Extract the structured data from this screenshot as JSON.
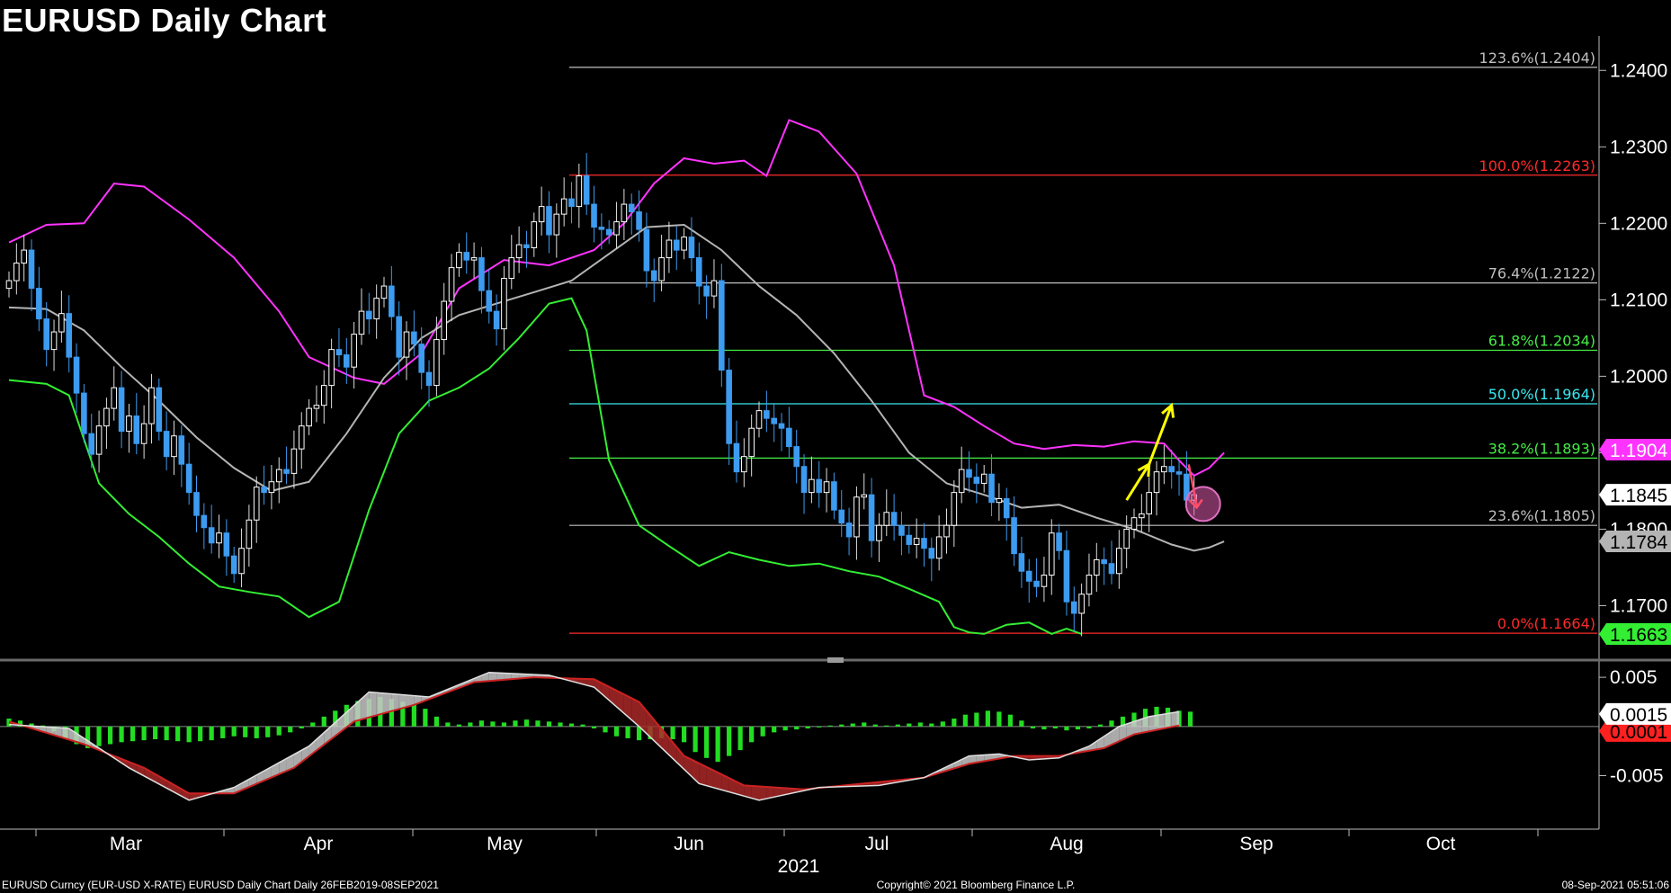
{
  "title": "EURUSD Daily Chart",
  "footer": {
    "left": "EURUSD Curncy (EUR-USD X-RATE) EURUSD Daily Chart  Daily 26FEB2019-08SEP2021",
    "center": "Copyright© 2021 Bloomberg Finance L.P.",
    "right": "08-Sep-2021 05:51:06"
  },
  "colors": {
    "background": "#000000",
    "upper_band": "#ff33ff",
    "lower_band": "#33ee33",
    "mid_band": "#b4b4b4",
    "candle_up": "#ffffff",
    "candle_down": "#3d9bf0",
    "fib_red": "#ff2a2a",
    "fib_green": "#44ee44",
    "fib_cyan": "#38e8f0",
    "fib_white": "#bfbfbf",
    "arrow": "#ffff00",
    "macd_hist": "#22dd22",
    "macd_line": "#bdbdbd",
    "signal_line": "#cc2222"
  },
  "chart_data": {
    "type": "candlestick",
    "title": "EURUSD Daily Chart",
    "year_label": "2021",
    "x_ticks": [
      "Mar",
      "Apr",
      "May",
      "Jun",
      "Jul",
      "Aug",
      "Sep",
      "Oct"
    ],
    "ylim": [
      1.163,
      1.2445
    ],
    "y_ticks": [
      "1.2400",
      "1.2300",
      "1.2200",
      "1.2100",
      "1.2000",
      "1.1900",
      "1.1800",
      "1.1700"
    ],
    "fibonacci_levels": [
      {
        "label": "123.6%(1.2404)",
        "value": 1.2404,
        "color": "white"
      },
      {
        "label": "100.0%(1.2263)",
        "value": 1.2263,
        "color": "red"
      },
      {
        "label": "76.4%(1.2122)",
        "value": 1.2122,
        "color": "white"
      },
      {
        "label": "61.8%(1.2034)",
        "value": 1.2034,
        "color": "green"
      },
      {
        "label": "50.0%(1.1964)",
        "value": 1.1964,
        "color": "cyan"
      },
      {
        "label": "38.2%(1.1893)",
        "value": 1.1893,
        "color": "green"
      },
      {
        "label": "23.6%(1.1805)",
        "value": 1.1805,
        "color": "white"
      },
      {
        "label": "0.0%(1.1664)",
        "value": 1.1664,
        "color": "red"
      }
    ],
    "price_badges": [
      {
        "label": "1.1904",
        "value": 1.1904,
        "bg": "#ff33ff",
        "fg": "#ffffff"
      },
      {
        "label": "1.1845",
        "value": 1.1845,
        "bg": "#ffffff",
        "fg": "#000000"
      },
      {
        "label": "1.1784",
        "value": 1.1784,
        "bg": "#b4b4b4",
        "fg": "#000000"
      },
      {
        "label": "1.1663",
        "value": 1.1663,
        "bg": "#33ee33",
        "fg": "#000000"
      }
    ],
    "closes": [
      1.2125,
      1.2148,
      1.2165,
      1.2115,
      1.2075,
      1.2035,
      1.2058,
      1.2082,
      1.2025,
      1.1978,
      1.1925,
      1.1898,
      1.1935,
      1.1958,
      1.1985,
      1.1928,
      1.1948,
      1.1912,
      1.1938,
      1.1985,
      1.1928,
      1.1895,
      1.1922,
      1.1885,
      1.1848,
      1.1818,
      1.1802,
      1.1782,
      1.1795,
      1.1765,
      1.1742,
      1.1775,
      1.1812,
      1.1855,
      1.1848,
      1.1862,
      1.1878,
      1.1873,
      1.1905,
      1.1935,
      1.1958,
      1.1962,
      1.1988,
      1.2035,
      1.2028,
      1.2012,
      1.2055,
      1.2085,
      1.2075,
      1.2102,
      1.2118,
      1.2078,
      1.2025,
      1.2058,
      1.2042,
      1.2005,
      1.1988,
      1.2048,
      1.2098,
      1.2142,
      1.2162,
      1.2152,
      1.2155,
      1.2112,
      1.2085,
      1.2062,
      1.2128,
      1.2155,
      1.2172,
      1.2168,
      1.2202,
      1.2222,
      1.2185,
      1.2212,
      1.2232,
      1.2222,
      1.2262,
      1.2225,
      1.2195,
      1.2192,
      1.2185,
      1.2202,
      1.2225,
      1.2215,
      1.2192,
      1.2138,
      1.2125,
      1.2155,
      1.2178,
      1.2165,
      1.2182,
      1.2155,
      1.2118,
      1.2105,
      1.2125,
      1.2008,
      1.1912,
      1.1875,
      1.1895,
      1.1932,
      1.1955,
      1.1945,
      1.1938,
      1.1932,
      1.1908,
      1.1882,
      1.1848,
      1.1865,
      1.1848,
      1.1862,
      1.1825,
      1.1808,
      1.179,
      1.1842,
      1.1845,
      1.1785,
      1.1805,
      1.1822,
      1.1805,
      1.1792,
      1.178,
      1.1788,
      1.1775,
      1.1762,
      1.179,
      1.1805,
      1.1848,
      1.1878,
      1.1868,
      1.186,
      1.1872,
      1.1835,
      1.184,
      1.1815,
      1.1768,
      1.1745,
      1.1732,
      1.1725,
      1.174,
      1.1795,
      1.1772,
      1.1705,
      1.169,
      1.1715,
      1.174,
      1.176,
      1.1755,
      1.1742,
      1.1775,
      1.18,
      1.1815,
      1.182,
      1.1848,
      1.1875,
      1.1882,
      1.1875,
      1.1872,
      1.1838,
      1.1845
    ],
    "bollinger_upper": [
      [
        0,
        1.2175
      ],
      [
        5,
        1.2198
      ],
      [
        10,
        1.22
      ],
      [
        14,
        1.2252
      ],
      [
        18,
        1.2248
      ],
      [
        24,
        1.2205
      ],
      [
        30,
        1.2155
      ],
      [
        36,
        1.2085
      ],
      [
        40,
        1.2025
      ],
      [
        46,
        1.1998
      ],
      [
        50,
        1.199
      ],
      [
        55,
        1.203
      ],
      [
        60,
        1.2115
      ],
      [
        66,
        1.2152
      ],
      [
        72,
        1.2145
      ],
      [
        78,
        1.2165
      ],
      [
        82,
        1.22
      ],
      [
        86,
        1.2252
      ],
      [
        90,
        1.2285
      ],
      [
        94,
        1.2278
      ],
      [
        98,
        1.2282
      ],
      [
        101,
        1.2262
      ],
      [
        104,
        1.2335
      ],
      [
        108,
        1.232
      ],
      [
        113,
        1.2265
      ],
      [
        118,
        1.2145
      ],
      [
        122,
        1.1975
      ],
      [
        126,
        1.196
      ],
      [
        130,
        1.1935
      ],
      [
        134,
        1.1912
      ],
      [
        138,
        1.1905
      ],
      [
        142,
        1.191
      ],
      [
        146,
        1.1908
      ],
      [
        150,
        1.1915
      ],
      [
        154,
        1.1912
      ],
      [
        156,
        1.189
      ],
      [
        158,
        1.187
      ],
      [
        160,
        1.188
      ],
      [
        162,
        1.19
      ]
    ],
    "bollinger_middle": [
      [
        0,
        1.209
      ],
      [
        5,
        1.2088
      ],
      [
        10,
        1.206
      ],
      [
        15,
        1.2012
      ],
      [
        20,
        1.1968
      ],
      [
        25,
        1.192
      ],
      [
        30,
        1.188
      ],
      [
        35,
        1.185
      ],
      [
        40,
        1.1862
      ],
      [
        45,
        1.1925
      ],
      [
        50,
        1.1998
      ],
      [
        55,
        1.205
      ],
      [
        60,
        1.208
      ],
      [
        65,
        1.2095
      ],
      [
        70,
        1.211
      ],
      [
        75,
        1.2125
      ],
      [
        80,
        1.216
      ],
      [
        85,
        1.2195
      ],
      [
        90,
        1.2198
      ],
      [
        95,
        1.2165
      ],
      [
        100,
        1.2118
      ],
      [
        105,
        1.208
      ],
      [
        110,
        1.203
      ],
      [
        115,
        1.1968
      ],
      [
        120,
        1.19
      ],
      [
        125,
        1.186
      ],
      [
        130,
        1.1845
      ],
      [
        135,
        1.1828
      ],
      [
        140,
        1.1832
      ],
      [
        145,
        1.1815
      ],
      [
        150,
        1.18
      ],
      [
        155,
        1.178
      ],
      [
        158,
        1.1772
      ],
      [
        160,
        1.1776
      ],
      [
        162,
        1.1784
      ]
    ],
    "bollinger_lower": [
      [
        0,
        1.1995
      ],
      [
        5,
        1.199
      ],
      [
        8,
        1.1975
      ],
      [
        12,
        1.186
      ],
      [
        16,
        1.182
      ],
      [
        20,
        1.179
      ],
      [
        24,
        1.1755
      ],
      [
        28,
        1.1725
      ],
      [
        32,
        1.1718
      ],
      [
        36,
        1.1712
      ],
      [
        40,
        1.1685
      ],
      [
        44,
        1.1705
      ],
      [
        48,
        1.1825
      ],
      [
        52,
        1.1925
      ],
      [
        56,
        1.1968
      ],
      [
        60,
        1.1985
      ],
      [
        64,
        1.201
      ],
      [
        68,
        1.205
      ],
      [
        72,
        1.2095
      ],
      [
        75,
        1.2102
      ],
      [
        77,
        1.206
      ],
      [
        80,
        1.189
      ],
      [
        84,
        1.1805
      ],
      [
        88,
        1.1778
      ],
      [
        92,
        1.1752
      ],
      [
        96,
        1.177
      ],
      [
        100,
        1.176
      ],
      [
        104,
        1.1752
      ],
      [
        108,
        1.1755
      ],
      [
        112,
        1.1745
      ],
      [
        116,
        1.1738
      ],
      [
        120,
        1.1722
      ],
      [
        124,
        1.1705
      ],
      [
        126,
        1.1672
      ],
      [
        128,
        1.1665
      ],
      [
        130,
        1.1663
      ],
      [
        133,
        1.1675
      ],
      [
        136,
        1.1678
      ],
      [
        139,
        1.1663
      ],
      [
        141,
        1.167
      ],
      [
        143,
        1.1663
      ]
    ],
    "arrows": [
      {
        "from": [
          149,
          1.1838
        ],
        "to": [
          152,
          1.1885
        ]
      },
      {
        "from": [
          152,
          1.1885
        ],
        "to": [
          155,
          1.1962
        ]
      }
    ],
    "macd": {
      "y_ticks": [
        "0.005",
        "-0.005"
      ],
      "ylim": [
        -0.0098,
        0.0062
      ],
      "badges": [
        {
          "label": "0.0015",
          "value": 0.0015,
          "bg": "#ffffff",
          "fg": "#000000"
        },
        {
          "label": "0.0001",
          "value": 0.0001,
          "bg": "#ff2020",
          "fg": "#000000"
        }
      ],
      "histogram": [
        0.0008,
        0.0006,
        0.0003,
        0.0001,
        -0.0005,
        -0.0012,
        -0.0018,
        -0.0022,
        -0.002,
        -0.0018,
        -0.0016,
        -0.0015,
        -0.0014,
        -0.0013,
        -0.0014,
        -0.0015,
        -0.0016,
        -0.0015,
        -0.0014,
        -0.0012,
        -0.001,
        -0.0011,
        -0.0012,
        -0.0011,
        -0.0009,
        -0.0006,
        -0.0002,
        0.0004,
        0.001,
        0.0016,
        0.0022,
        0.0026,
        0.0028,
        0.003,
        0.0028,
        0.0025,
        0.0022,
        0.0018,
        0.001,
        0.0004,
        0.0002,
        0.0004,
        0.0006,
        0.0005,
        0.0004,
        0.0006,
        0.0007,
        0.0006,
        0.0005,
        0.0004,
        0.0003,
        0.0002,
        -0.0002,
        -0.0006,
        -0.001,
        -0.0012,
        -0.0014,
        -0.0013,
        -0.0012,
        -0.0013,
        -0.0016,
        -0.0026,
        -0.0032,
        -0.0036,
        -0.003,
        -0.0024,
        -0.0016,
        -0.001,
        -0.0006,
        -0.0004,
        -0.0003,
        -0.0002,
        -0.0001,
        0.0001,
        0.0002,
        0.0003,
        0.0004,
        0.0002,
        0.0001,
        0.0002,
        0.0003,
        0.0004,
        0.0003,
        0.0005,
        0.0008,
        0.0012,
        0.0014,
        0.0016,
        0.0015,
        0.0012,
        0.0006,
        -0.0002,
        -0.0003,
        -0.0002,
        -0.0004,
        -0.0003,
        -0.0002,
        0.0002,
        0.0006,
        0.001,
        0.0014,
        0.0018,
        0.002,
        0.0019,
        0.0016,
        0.0015
      ],
      "macd_line": [
        [
          0,
          0.0002
        ],
        [
          8,
          -0.0002
        ],
        [
          16,
          -0.0042
        ],
        [
          24,
          -0.0075
        ],
        [
          30,
          -0.0062
        ],
        [
          40,
          -0.002
        ],
        [
          48,
          0.0035
        ],
        [
          56,
          0.003
        ],
        [
          64,
          0.0055
        ],
        [
          72,
          0.0052
        ],
        [
          78,
          0.004
        ],
        [
          84,
          0.0
        ],
        [
          92,
          -0.0058
        ],
        [
          100,
          -0.0075
        ],
        [
          108,
          -0.0062
        ],
        [
          116,
          -0.006
        ],
        [
          122,
          -0.0052
        ],
        [
          128,
          -0.003
        ],
        [
          132,
          -0.0028
        ],
        [
          136,
          -0.0034
        ],
        [
          140,
          -0.0032
        ],
        [
          144,
          -0.002
        ],
        [
          148,
          0.0
        ],
        [
          152,
          0.001
        ],
        [
          156,
          0.0015
        ]
      ],
      "signal_line": [
        [
          0,
          0.0005
        ],
        [
          10,
          -0.0018
        ],
        [
          18,
          -0.0042
        ],
        [
          24,
          -0.0068
        ],
        [
          30,
          -0.0068
        ],
        [
          38,
          -0.0042
        ],
        [
          46,
          0.0005
        ],
        [
          54,
          0.0022
        ],
        [
          62,
          0.0045
        ],
        [
          70,
          0.005
        ],
        [
          78,
          0.0048
        ],
        [
          84,
          0.0025
        ],
        [
          90,
          -0.003
        ],
        [
          98,
          -0.006
        ],
        [
          106,
          -0.0064
        ],
        [
          114,
          -0.0058
        ],
        [
          122,
          -0.0052
        ],
        [
          128,
          -0.0038
        ],
        [
          134,
          -0.003
        ],
        [
          140,
          -0.003
        ],
        [
          146,
          -0.0022
        ],
        [
          150,
          -0.0008
        ],
        [
          156,
          0.0001
        ]
      ]
    }
  }
}
